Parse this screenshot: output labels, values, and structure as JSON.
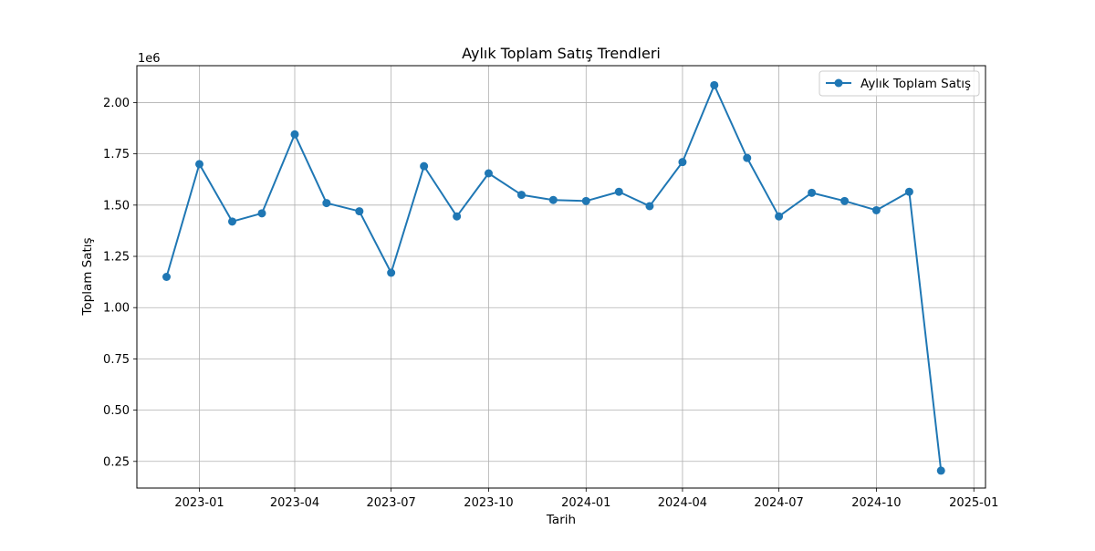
{
  "chart_data": {
    "type": "line",
    "title": "Aylık Toplam Satış Trendleri",
    "xlabel": "Tarih",
    "ylabel": "Toplam Satış",
    "y_scale_label": "1e6",
    "y_unit_multiplier": 1000000,
    "grid": true,
    "legend_position": "top-right",
    "colors": {
      "series": "#1f77b4",
      "grid": "#b0b0b0",
      "axis": "#000000"
    },
    "xlim": [
      "2022-11-03",
      "2025-01-12"
    ],
    "ylim": [
      0.12,
      2.18
    ],
    "x_ticks": [
      {
        "date": "2023-01-01",
        "label": "2023-01"
      },
      {
        "date": "2023-04-01",
        "label": "2023-04"
      },
      {
        "date": "2023-07-01",
        "label": "2023-07"
      },
      {
        "date": "2023-10-01",
        "label": "2023-10"
      },
      {
        "date": "2024-01-01",
        "label": "2024-01"
      },
      {
        "date": "2024-04-01",
        "label": "2024-04"
      },
      {
        "date": "2024-07-01",
        "label": "2024-07"
      },
      {
        "date": "2024-10-01",
        "label": "2024-10"
      },
      {
        "date": "2025-01-01",
        "label": "2025-01"
      }
    ],
    "y_ticks": [
      {
        "value": 0.25,
        "label": "0.25"
      },
      {
        "value": 0.5,
        "label": "0.50"
      },
      {
        "value": 0.75,
        "label": "0.75"
      },
      {
        "value": 1.0,
        "label": "1.00"
      },
      {
        "value": 1.25,
        "label": "1.25"
      },
      {
        "value": 1.5,
        "label": "1.50"
      },
      {
        "value": 1.75,
        "label": "1.75"
      },
      {
        "value": 2.0,
        "label": "2.00"
      }
    ],
    "series": [
      {
        "name": "Aylık Toplam Satış",
        "marker": "circle",
        "points": [
          {
            "x": "2022-12-01",
            "y": 1.15
          },
          {
            "x": "2023-01-01",
            "y": 1.7
          },
          {
            "x": "2023-02-01",
            "y": 1.42
          },
          {
            "x": "2023-03-01",
            "y": 1.46
          },
          {
            "x": "2023-04-01",
            "y": 1.845
          },
          {
            "x": "2023-05-01",
            "y": 1.51
          },
          {
            "x": "2023-06-01",
            "y": 1.47
          },
          {
            "x": "2023-07-01",
            "y": 1.17
          },
          {
            "x": "2023-08-01",
            "y": 1.69
          },
          {
            "x": "2023-09-01",
            "y": 1.445
          },
          {
            "x": "2023-10-01",
            "y": 1.655
          },
          {
            "x": "2023-11-01",
            "y": 1.55
          },
          {
            "x": "2023-12-01",
            "y": 1.525
          },
          {
            "x": "2024-01-01",
            "y": 1.52
          },
          {
            "x": "2024-02-01",
            "y": 1.565
          },
          {
            "x": "2024-03-01",
            "y": 1.495
          },
          {
            "x": "2024-04-01",
            "y": 1.71
          },
          {
            "x": "2024-05-01",
            "y": 2.085
          },
          {
            "x": "2024-06-01",
            "y": 1.73
          },
          {
            "x": "2024-07-01",
            "y": 1.445
          },
          {
            "x": "2024-08-01",
            "y": 1.56
          },
          {
            "x": "2024-09-01",
            "y": 1.52
          },
          {
            "x": "2024-10-01",
            "y": 1.475
          },
          {
            "x": "2024-11-01",
            "y": 1.565
          },
          {
            "x": "2024-12-01",
            "y": 0.205
          }
        ]
      }
    ]
  }
}
